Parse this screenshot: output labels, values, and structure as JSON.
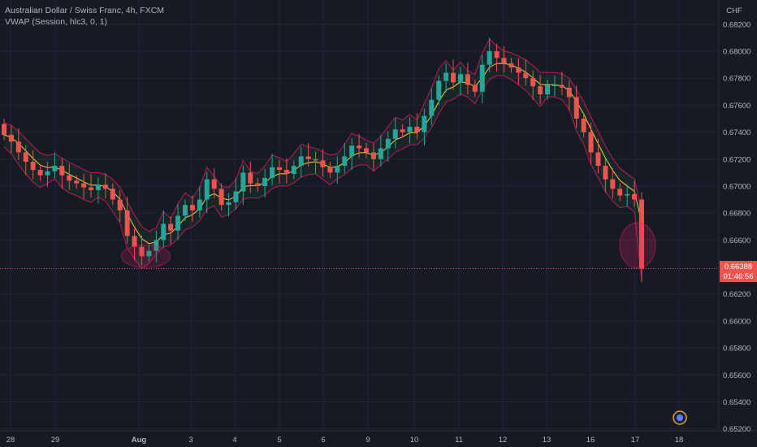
{
  "header": {
    "symbol_line": "Australian Dollar / Swiss Franc, 4h, FXCM",
    "indicator_line": "VWAP (Session, hlc3, 0, 1)"
  },
  "price_axis": {
    "currency": "CHF"
  },
  "price_tag": {
    "price": "0.66388",
    "countdown": "01:46:56"
  },
  "colors": {
    "background": "#161a25",
    "up": "#26a69a",
    "down": "#ef5350",
    "vwap": "#e6d43a",
    "band": "#c2185b",
    "grid": "#232632"
  },
  "chart_data": {
    "type": "candlestick",
    "ylim": [
      0.65186,
      0.68235
    ],
    "y_ticks": [
      0.682,
      0.68,
      0.678,
      0.676,
      0.674,
      0.672,
      0.67,
      0.668,
      0.666,
      0.662,
      0.66,
      0.658,
      0.656,
      0.654,
      0.652
    ],
    "x_ticks": [
      "28",
      "29",
      "Aug",
      "3",
      "4",
      "5",
      "6",
      "9",
      "10",
      "11",
      "12",
      "13",
      "16",
      "17",
      "18"
    ],
    "last_price": 0.66388,
    "closes": [
      0.6738,
      0.6733,
      0.6725,
      0.6718,
      0.6712,
      0.6708,
      0.6711,
      0.6715,
      0.6708,
      0.6704,
      0.6702,
      0.6699,
      0.6697,
      0.6701,
      0.6698,
      0.669,
      0.6682,
      0.6663,
      0.6655,
      0.6648,
      0.6652,
      0.666,
      0.6672,
      0.6667,
      0.6678,
      0.6686,
      0.6682,
      0.669,
      0.6705,
      0.6698,
      0.6686,
      0.6688,
      0.6696,
      0.671,
      0.6702,
      0.67,
      0.6706,
      0.6714,
      0.6712,
      0.6709,
      0.6715,
      0.6722,
      0.672,
      0.6719,
      0.6714,
      0.671,
      0.6715,
      0.6722,
      0.673,
      0.6728,
      0.6725,
      0.672,
      0.6728,
      0.6735,
      0.6742,
      0.674,
      0.6744,
      0.674,
      0.6752,
      0.6764,
      0.6778,
      0.6784,
      0.6777,
      0.6783,
      0.6775,
      0.677,
      0.679,
      0.68,
      0.6795,
      0.6791,
      0.6788,
      0.6784,
      0.678,
      0.6774,
      0.6768,
      0.6775,
      0.6775,
      0.6773,
      0.6766,
      0.675,
      0.674,
      0.6725,
      0.6715,
      0.6705,
      0.6698,
      0.6693,
      0.6694,
      0.669,
      0.66388
    ]
  }
}
